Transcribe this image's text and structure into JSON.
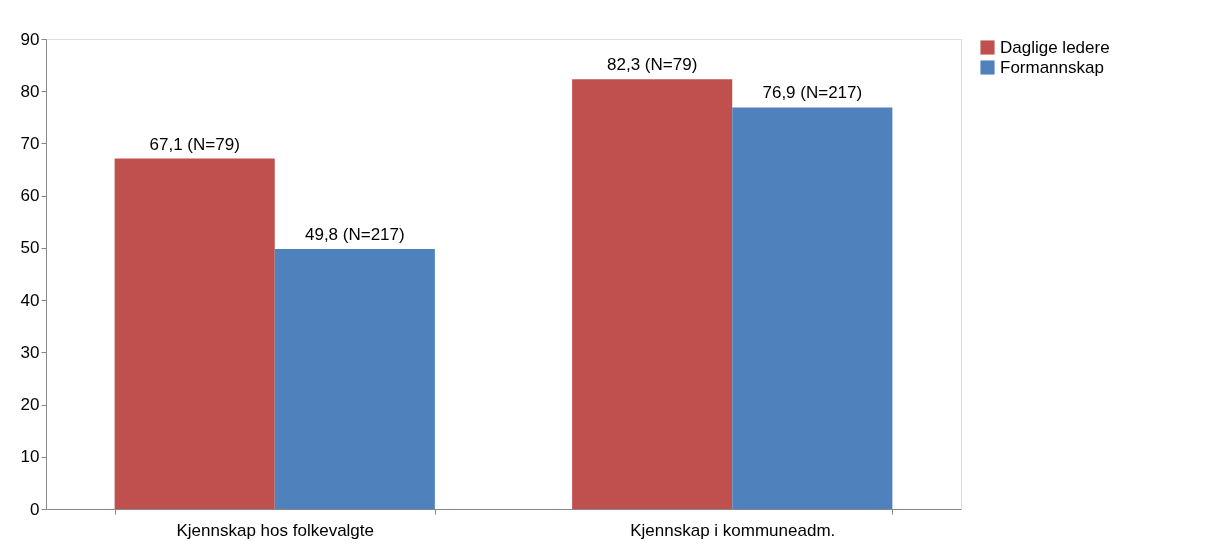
{
  "chart_data": {
    "type": "bar",
    "categories": [
      "Kjennskap hos folkevalgte",
      "Kjennskap i kommuneadm."
    ],
    "series": [
      {
        "name": "Daglige ledere",
        "color": "#c0504d",
        "values": [
          67.1,
          82.3
        ],
        "value_labels": [
          "67,1 (N=79)",
          "82,3 (N=79)"
        ]
      },
      {
        "name": "Formannskap",
        "color": "#4f81bd",
        "values": [
          49.8,
          76.9
        ],
        "value_labels": [
          "49,8 (N=217)",
          "76,9 (N=217)"
        ]
      }
    ],
    "ylim": [
      0,
      90
    ],
    "yticks": [
      0,
      10,
      20,
      30,
      40,
      50,
      60,
      70,
      80,
      90
    ],
    "grid": false,
    "legend": "right"
  }
}
